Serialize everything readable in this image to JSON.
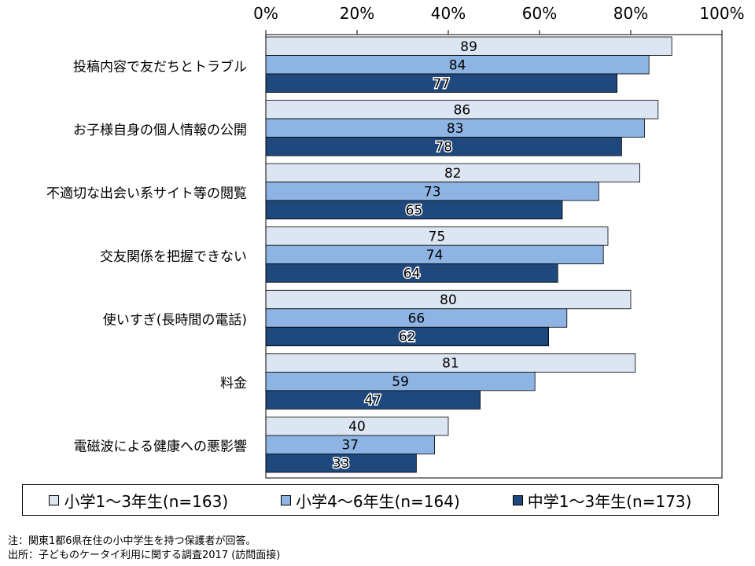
{
  "chart_data": {
    "type": "bar",
    "orientation": "horizontal",
    "categories": [
      "投稿内容で友だちとトラブル",
      "お子様自身の個人情報の公開",
      "不適切な出会い系サイト等の閲覧",
      "交友関係を把握できない",
      "使いすぎ(長時間の電話)",
      "料金",
      "電磁波による健康への悪影響"
    ],
    "series": [
      {
        "name": "小学1～3年生(n=163)",
        "color": "#dce6f2",
        "values": [
          89,
          86,
          82,
          75,
          80,
          81,
          40
        ]
      },
      {
        "name": "小学4～6年生(n=164)",
        "color": "#8eb4e3",
        "values": [
          84,
          83,
          73,
          74,
          66,
          59,
          37
        ]
      },
      {
        "name": "中学1～3年生(n=173)",
        "color": "#1f497d",
        "values": [
          77,
          78,
          65,
          64,
          62,
          47,
          33
        ]
      }
    ],
    "xlim": [
      0,
      100
    ],
    "xticks": [
      "0%",
      "20%",
      "40%",
      "60%",
      "80%",
      "100%"
    ],
    "axis_position": "top",
    "grid": false,
    "legend_position": "bottom"
  },
  "notes": [
    "注：関東1都6県在住の小中学生を持つ保護者が回答。",
    "出所：子どものケータイ利用に関する調査2017 (訪問面接)"
  ]
}
